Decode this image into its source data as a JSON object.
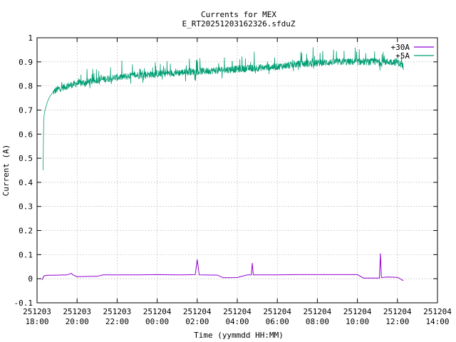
{
  "chart_data": {
    "type": "line",
    "title": "Currents for MEX",
    "subtitle": "E_RT20251203162326.sfduZ",
    "xlabel": "Time (yymmdd HH:MM)",
    "ylabel": "Current (A)",
    "ylim": [
      -0.1,
      1.0
    ],
    "xlim_hours": [
      0,
      20
    ],
    "y_ticks": [
      "-0.1",
      "0",
      "0.1",
      "0.2",
      "0.3",
      "0.4",
      "0.5",
      "0.6",
      "0.7",
      "0.8",
      "0.9",
      "1"
    ],
    "x_ticks": [
      {
        "date": "251203",
        "time": "18:00"
      },
      {
        "date": "251203",
        "time": "20:00"
      },
      {
        "date": "251203",
        "time": "22:00"
      },
      {
        "date": "251204",
        "time": "00:00"
      },
      {
        "date": "251204",
        "time": "02:00"
      },
      {
        "date": "251204",
        "time": "04:00"
      },
      {
        "date": "251204",
        "time": "06:00"
      },
      {
        "date": "251204",
        "time": "08:00"
      },
      {
        "date": "251204",
        "time": "10:00"
      },
      {
        "date": "251204",
        "time": "12:00"
      },
      {
        "date": "251204",
        "time": "14:00"
      }
    ],
    "grid": true,
    "legend_position": "top-right",
    "series": [
      {
        "name": "+30A",
        "color": "#9400d3",
        "x_hours": [
          0.25,
          0.35,
          0.5,
          1.0,
          1.5,
          1.7,
          1.8,
          2.0,
          2.2,
          3.0,
          3.3,
          4.0,
          5.0,
          6.0,
          7.0,
          7.3,
          7.9,
          8.0,
          8.1,
          9.0,
          9.3,
          10.0,
          10.5,
          10.7,
          10.75,
          10.8,
          11.0,
          12.0,
          13.0,
          14.0,
          15.0,
          16.0,
          16.3,
          17.0,
          17.1,
          17.15,
          17.2,
          17.5,
          18.0,
          18.3
        ],
        "values": [
          -0.005,
          0.012,
          0.014,
          0.015,
          0.016,
          0.022,
          0.016,
          0.008,
          0.009,
          0.01,
          0.016,
          0.016,
          0.016,
          0.017,
          0.016,
          0.016,
          0.017,
          0.08,
          0.016,
          0.015,
          0.004,
          0.005,
          0.016,
          0.016,
          0.065,
          0.016,
          0.016,
          0.016,
          0.017,
          0.017,
          0.017,
          0.017,
          0.003,
          0.003,
          0.003,
          0.105,
          0.005,
          0.007,
          0.006,
          -0.008
        ]
      },
      {
        "name": "+5A",
        "color": "#009e73",
        "x_hours": [
          0.3,
          0.32,
          0.35,
          0.4,
          0.5,
          0.6,
          0.75,
          1.0,
          1.5,
          2.0,
          2.5,
          3.0,
          4.0,
          5.0,
          6.0,
          7.0,
          8.0,
          9.0,
          10.0,
          11.0,
          12.0,
          13.0,
          14.0,
          15.0,
          16.0,
          17.0,
          18.0,
          18.3
        ],
        "values": [
          0.45,
          0.6,
          0.68,
          0.7,
          0.73,
          0.75,
          0.77,
          0.785,
          0.8,
          0.81,
          0.815,
          0.825,
          0.835,
          0.845,
          0.85,
          0.855,
          0.86,
          0.865,
          0.87,
          0.875,
          0.88,
          0.89,
          0.895,
          0.9,
          0.9,
          0.9,
          0.9,
          0.88
        ]
      }
    ]
  }
}
